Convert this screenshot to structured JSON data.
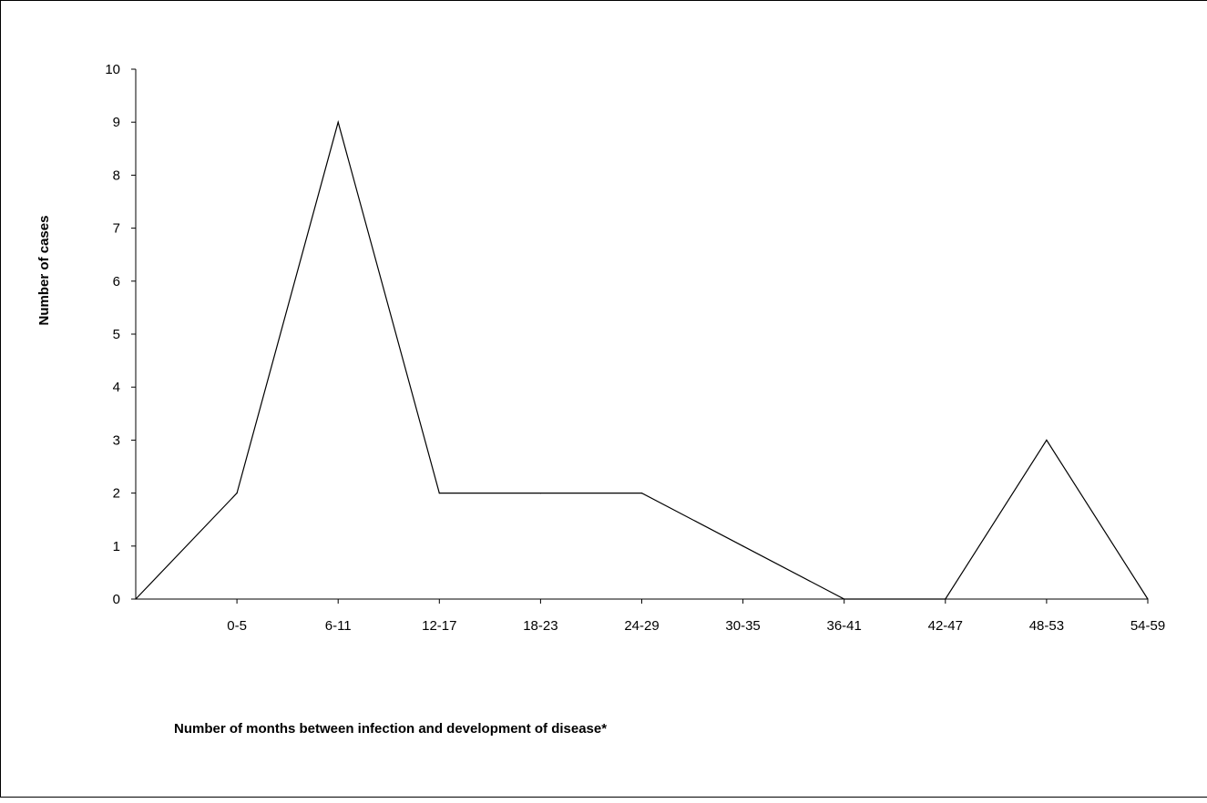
{
  "chart_data": {
    "type": "line",
    "title": "",
    "xlabel": "Number of months between infection and development of disease*",
    "ylabel": "Number of cases",
    "categories": [
      "",
      "0-5",
      "6-11",
      "12-17",
      "18-23",
      "24-29",
      "30-35",
      "36-41",
      "42-47",
      "48-53",
      "54-59"
    ],
    "series": [
      {
        "values": [
          0,
          2,
          9,
          2,
          2,
          2,
          1,
          0,
          0,
          3,
          0
        ]
      }
    ],
    "ylim": [
      0,
      10
    ],
    "yticks": [
      0,
      1,
      2,
      3,
      4,
      5,
      6,
      7,
      8,
      9,
      10
    ],
    "grid": false,
    "legend": "none",
    "colors": {
      "line": "#000000",
      "axis": "#000000",
      "background": "#ffffff"
    }
  }
}
